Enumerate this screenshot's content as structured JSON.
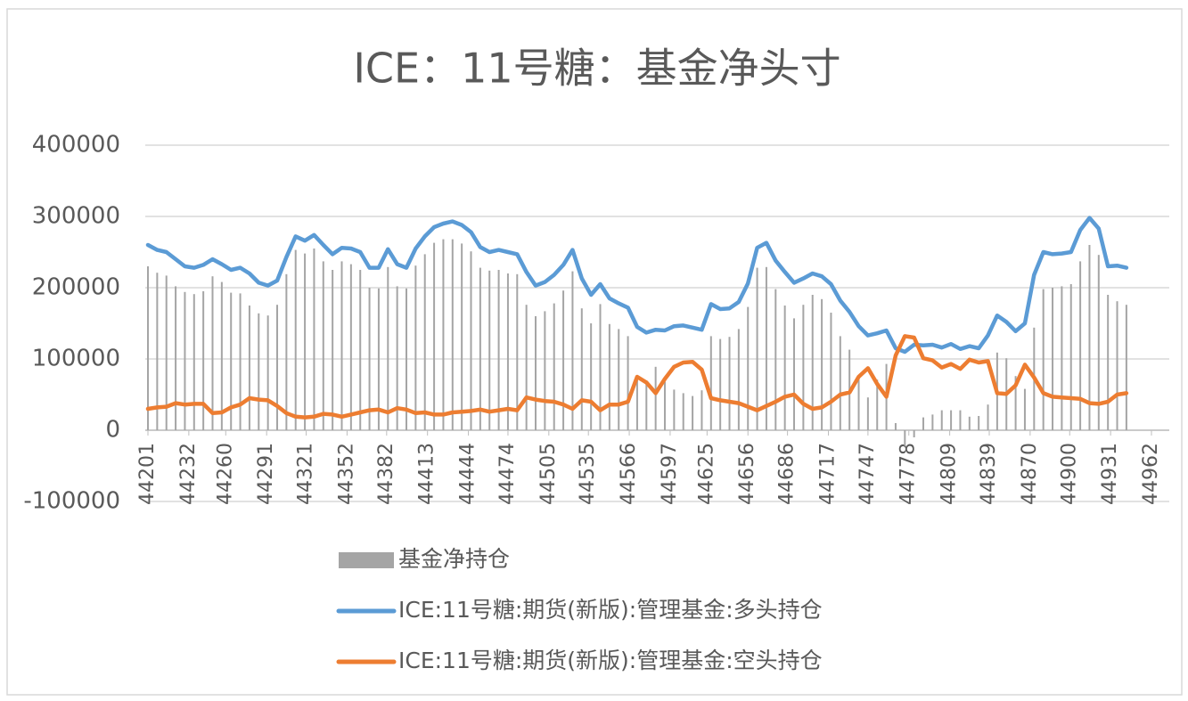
{
  "chart_data": {
    "type": "line",
    "title": "ICE：11号糖：基金净头寸",
    "x": [
      44201,
      44208,
      44215,
      44222,
      44229,
      44236,
      44243,
      44250,
      44257,
      44264,
      44271,
      44278,
      44285,
      44292,
      44299,
      44306,
      44313,
      44320,
      44327,
      44334,
      44341,
      44348,
      44355,
      44362,
      44369,
      44376,
      44383,
      44390,
      44397,
      44404,
      44411,
      44418,
      44425,
      44432,
      44439,
      44446,
      44453,
      44460,
      44467,
      44474,
      44481,
      44488,
      44495,
      44502,
      44509,
      44516,
      44523,
      44530,
      44537,
      44544,
      44551,
      44558,
      44565,
      44572,
      44579,
      44586,
      44593,
      44600,
      44607,
      44614,
      44621,
      44628,
      44635,
      44642,
      44649,
      44656,
      44663,
      44670,
      44677,
      44684,
      44691,
      44698,
      44705,
      44712,
      44719,
      44726,
      44733,
      44740,
      44747,
      44754,
      44761,
      44768,
      44775,
      44782,
      44789,
      44796,
      44803,
      44810,
      44817,
      44824,
      44831,
      44838,
      44845,
      44852,
      44859,
      44866,
      44873,
      44880,
      44887,
      44894,
      44901,
      44908,
      44915,
      44922,
      44929,
      44936,
      44943
    ],
    "series": [
      {
        "name": "基金净持仓",
        "type": "bar",
        "color": "#a5a5a5",
        "values": [
          230000,
          221000,
          217000,
          202000,
          194000,
          191000,
          195000,
          216000,
          208000,
          193000,
          192000,
          175000,
          164000,
          161000,
          176000,
          219000,
          253000,
          248000,
          255000,
          237000,
          225000,
          237000,
          233000,
          225000,
          200000,
          199000,
          229000,
          202000,
          199000,
          231000,
          247000,
          263000,
          268000,
          268000,
          262000,
          251000,
          228000,
          224000,
          225000,
          220000,
          219000,
          176000,
          160000,
          167000,
          178000,
          196000,
          223000,
          171000,
          150000,
          177000,
          149000,
          142000,
          132000,
          70000,
          70000,
          89000,
          68000,
          57000,
          52000,
          48000,
          56000,
          132000,
          128000,
          131000,
          142000,
          173000,
          228000,
          229000,
          198000,
          175000,
          157000,
          176000,
          190000,
          184000,
          165000,
          132000,
          113000,
          71000,
          46000,
          71000,
          93000,
          10000,
          -22000,
          -10000,
          18000,
          22000,
          28000,
          28000,
          28000,
          19000,
          20000,
          36000,
          109000,
          101000,
          76000,
          58000,
          144000,
          198000,
          200000,
          202000,
          205000,
          237000,
          260000,
          246000,
          190000,
          181000,
          176000
        ]
      },
      {
        "name": "ICE:11号糖:期货(新版):管理基金:多头持仓",
        "type": "line",
        "color": "#5b9bd5",
        "values": [
          260000,
          253000,
          250000,
          240000,
          230000,
          228000,
          232000,
          240000,
          233000,
          225000,
          228000,
          220000,
          207000,
          203000,
          210000,
          243000,
          272000,
          266000,
          274000,
          260000,
          247000,
          256000,
          255000,
          250000,
          228000,
          228000,
          254000,
          233000,
          228000,
          255000,
          272000,
          285000,
          290000,
          293000,
          288000,
          278000,
          257000,
          250000,
          253000,
          250000,
          247000,
          222000,
          203000,
          208000,
          218000,
          232000,
          253000,
          213000,
          190000,
          205000,
          185000,
          178000,
          172000,
          145000,
          137000,
          141000,
          140000,
          146000,
          147000,
          144000,
          141000,
          177000,
          170000,
          171000,
          180000,
          206000,
          256000,
          263000,
          238000,
          222000,
          207000,
          213000,
          220000,
          216000,
          205000,
          182000,
          166000,
          146000,
          133000,
          136000,
          140000,
          115000,
          110000,
          120000,
          119000,
          120000,
          116000,
          121000,
          114000,
          118000,
          115000,
          133000,
          161000,
          152000,
          139000,
          150000,
          218000,
          250000,
          247000,
          248000,
          250000,
          281000,
          298000,
          283000,
          230000,
          231000,
          228000
        ]
      },
      {
        "name": "ICE:11号糖:期货(新版):管理基金:空头持仓",
        "type": "line",
        "color": "#ed7d31",
        "values": [
          30000,
          32000,
          33000,
          38000,
          36000,
          37000,
          37000,
          24000,
          25000,
          32000,
          36000,
          45000,
          43000,
          42000,
          34000,
          24000,
          19000,
          18000,
          19000,
          23000,
          22000,
          19000,
          22000,
          25000,
          28000,
          29000,
          25000,
          31000,
          29000,
          24000,
          25000,
          22000,
          22000,
          25000,
          26000,
          27000,
          29000,
          26000,
          28000,
          30000,
          28000,
          46000,
          43000,
          41000,
          40000,
          36000,
          30000,
          42000,
          40000,
          28000,
          36000,
          36000,
          40000,
          75000,
          67000,
          52000,
          72000,
          89000,
          95000,
          96000,
          85000,
          45000,
          42000,
          40000,
          38000,
          33000,
          28000,
          34000,
          40000,
          47000,
          50000,
          37000,
          30000,
          32000,
          40000,
          50000,
          53000,
          75000,
          87000,
          65000,
          47000,
          105000,
          132000,
          130000,
          101000,
          98000,
          88000,
          93000,
          86000,
          99000,
          95000,
          97000,
          52000,
          51000,
          63000,
          92000,
          74000,
          52000,
          47000,
          46000,
          45000,
          44000,
          38000,
          37000,
          40000,
          50000,
          52000
        ]
      }
    ],
    "xlim": [
      44201,
      44962
    ],
    "xticks": [
      44201,
      44232,
      44260,
      44291,
      44321,
      44352,
      44382,
      44413,
      44444,
      44474,
      44505,
      44535,
      44566,
      44597,
      44625,
      44656,
      44686,
      44717,
      44747,
      44778,
      44809,
      44839,
      44870,
      44900,
      44931,
      44962
    ],
    "ylim": [
      -100000,
      400000
    ],
    "yticks": [
      -100000,
      0,
      100000,
      200000,
      300000,
      400000
    ],
    "grid": true,
    "legend": "bottom"
  }
}
